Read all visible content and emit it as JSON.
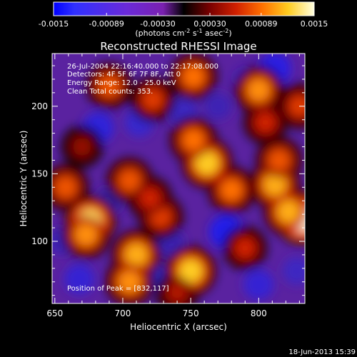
{
  "colorbar": {
    "tick_labels": [
      "-0.0015",
      "-0.00089",
      "-0.00030",
      "0.00030",
      "0.00089",
      "0.0015"
    ],
    "units_prefix": "(photons cm",
    "units_exp1": "-2",
    "units_mid": " s",
    "units_exp2": "-1",
    "units_mid2": " asec",
    "units_exp3": "-2",
    "units_suffix": ")"
  },
  "chart_data": {
    "type": "heatmap",
    "title": "Reconstructed RHESSI Image",
    "xlabel": "Heliocentric X (arcsec)",
    "ylabel": "Heliocentric Y (arcsec)",
    "x_ticks": [
      "650",
      "700",
      "750",
      "800"
    ],
    "y_ticks": [
      "100",
      "150",
      "200"
    ],
    "x_range": [
      648,
      834
    ],
    "y_range": [
      54,
      239
    ],
    "value_range": [
      -0.0015,
      0.0015
    ],
    "colormap": "red-temperature (blue for negative)",
    "annotations": [
      "26-Jul-2004 22:16:40.000 to 22:17:08.000",
      "Detectors: 4F 5F 6F 7F 8F, Att 0",
      "Energy Range: 12.0 - 25.0 keV",
      "Clean    Total counts: 353.",
      "Position of Peak = [832,117]"
    ],
    "peak": {
      "x": 832,
      "y": 117
    },
    "sources": [
      {
        "x": 676,
        "y": 115,
        "value": 0.0013
      },
      {
        "x": 658,
        "y": 140,
        "value": 0.0008
      },
      {
        "x": 673,
        "y": 105,
        "value": 0.001
      },
      {
        "x": 728,
        "y": 118,
        "value": 0.0007
      },
      {
        "x": 710,
        "y": 90,
        "value": 0.0011
      },
      {
        "x": 705,
        "y": 70,
        "value": 0.001
      },
      {
        "x": 750,
        "y": 78,
        "value": 0.0012
      },
      {
        "x": 762,
        "y": 158,
        "value": 0.0012
      },
      {
        "x": 752,
        "y": 175,
        "value": 0.0009
      },
      {
        "x": 780,
        "y": 138,
        "value": 0.0009
      },
      {
        "x": 812,
        "y": 142,
        "value": 0.0011
      },
      {
        "x": 832,
        "y": 117,
        "value": 0.0015
      },
      {
        "x": 822,
        "y": 122,
        "value": 0.0011
      },
      {
        "x": 815,
        "y": 160,
        "value": 0.0008
      },
      {
        "x": 705,
        "y": 145,
        "value": 0.0008
      },
      {
        "x": 720,
        "y": 132,
        "value": 0.0006
      },
      {
        "x": 690,
        "y": 215,
        "value": 0.0008
      },
      {
        "x": 722,
        "y": 205,
        "value": 0.0007
      },
      {
        "x": 752,
        "y": 222,
        "value": 0.0009
      },
      {
        "x": 800,
        "y": 212,
        "value": 0.001
      },
      {
        "x": 805,
        "y": 188,
        "value": 0.0006
      },
      {
        "x": 830,
        "y": 200,
        "value": 0.0007
      },
      {
        "x": 790,
        "y": 95,
        "value": 0.0006
      },
      {
        "x": 670,
        "y": 170,
        "value": 0.0004
      },
      {
        "x": 740,
        "y": 62,
        "value": 0.0005
      },
      {
        "x": 668,
        "y": 72,
        "value": -0.0009
      },
      {
        "x": 682,
        "y": 184,
        "value": -0.001
      },
      {
        "x": 812,
        "y": 228,
        "value": -0.0011
      },
      {
        "x": 776,
        "y": 107,
        "value": -0.0012
      },
      {
        "x": 712,
        "y": 188,
        "value": -0.0008
      },
      {
        "x": 793,
        "y": 218,
        "value": -0.0009
      },
      {
        "x": 720,
        "y": 75,
        "value": -0.0007
      },
      {
        "x": 800,
        "y": 68,
        "value": -0.0009
      },
      {
        "x": 745,
        "y": 195,
        "value": -0.0007
      },
      {
        "x": 770,
        "y": 200,
        "value": -0.0006
      },
      {
        "x": 690,
        "y": 130,
        "value": -0.0005
      },
      {
        "x": 735,
        "y": 100,
        "value": -0.0006
      },
      {
        "x": 655,
        "y": 100,
        "value": -0.0006
      },
      {
        "x": 828,
        "y": 78,
        "value": -0.0007
      }
    ]
  },
  "footer": {
    "date": "18-Jun-2013 15:39"
  }
}
